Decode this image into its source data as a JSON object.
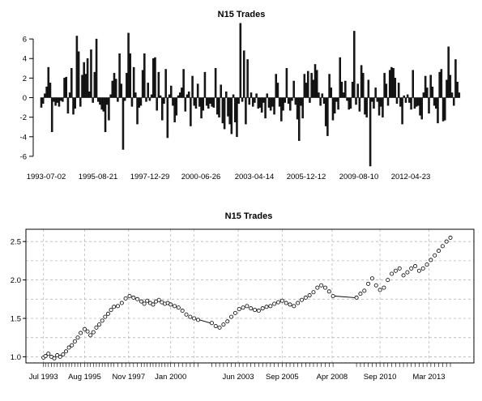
{
  "chart_data": [
    {
      "type": "bar",
      "title": "N15 Trades",
      "xlabel": "",
      "ylabel": "",
      "ylim": [
        -7,
        7.5
      ],
      "yticks": [
        -6,
        -4,
        -2,
        0,
        2,
        4,
        6
      ],
      "xtick_labels": [
        "1993-07-02",
        "1995-08-21",
        "1997-12-29",
        "2000-06-26",
        "2003-04-14",
        "2005-12-12",
        "2009-08-10",
        "2012-04-23"
      ],
      "values": [
        -1.0,
        -0.6,
        0.4,
        1.1,
        3.1,
        1.5,
        -3.5,
        -0.4,
        -0.8,
        -0.5,
        -0.9,
        -0.3,
        -0.4,
        2.0,
        2.1,
        -1.6,
        0.5,
        3.0,
        -1.7,
        -1.1,
        6.3,
        4.7,
        -0.9,
        2.3,
        3.6,
        2.4,
        4.0,
        0.6,
        4.9,
        -0.5,
        2.6,
        6.0,
        -0.4,
        -0.7,
        -1.2,
        -1.4,
        -3.5,
        -0.7,
        -2.3,
        0.3,
        1.7,
        2.5,
        1.9,
        -0.4,
        4.5,
        1.4,
        -5.3,
        -0.3,
        2.5,
        6.6,
        4.5,
        -0.9,
        3.1,
        0.5,
        -2.7,
        -1.0,
        -0.8,
        2.8,
        4.5,
        -0.4,
        1.5,
        -0.3,
        0.3,
        4.0,
        4.1,
        -1.3,
        2.6,
        0.2,
        -2.3,
        -0.6,
        2.9,
        -4.1,
        0.3,
        1.2,
        -0.8,
        -2.5,
        -1.8,
        0.2,
        0.5,
        1.0,
        2.9,
        -1.4,
        0.3,
        0.6,
        -2.9,
        2.2,
        -0.8,
        -1.1,
        1.4,
        -0.9,
        -2.1,
        -1.3,
        2.6,
        -0.8,
        -1.1,
        -0.6,
        -0.9,
        -1.0,
        3.0,
        -1.7,
        -2.0,
        1.3,
        -2.6,
        -3.2,
        0.6,
        -1.9,
        -2.7,
        -3.7,
        0.3,
        -2.5,
        -4.0,
        -0.6,
        7.6,
        -0.4,
        4.8,
        -2.7,
        3.9,
        -0.7,
        0.5,
        -0.9,
        -0.5,
        0.4,
        -1.1,
        -1.0,
        -1.5,
        -0.5,
        -2.1,
        0.4,
        -1.0,
        -1.3,
        -0.9,
        -1.7,
        2.4,
        1.5,
        -0.9,
        -2.4,
        -1.3,
        -0.5,
        3.0,
        -0.6,
        -1.3,
        -0.3,
        1.7,
        -0.7,
        -2.2,
        -4.4,
        -0.8,
        -2.1,
        2.4,
        1.5,
        2.7,
        -0.5,
        2.5,
        1.8,
        3.4,
        2.8,
        0.5,
        -0.8,
        0.4,
        -0.6,
        -2.9,
        -3.9,
        2.4,
        1.0,
        -2.3,
        -1.6,
        -0.4,
        -1.2,
        4.1,
        1.6,
        0.5,
        1.7,
        -0.3,
        -1.2,
        -1.1,
        1.6,
        6.8,
        -0.7,
        1.4,
        -1.4,
        3.3,
        2.5,
        -1.7,
        -2.0,
        1.8,
        -7.0,
        -0.4,
        -1.1,
        1.0,
        -0.4,
        -1.8,
        -0.9,
        -2.0,
        2.5,
        1.4,
        -0.8,
        2.8,
        3.1,
        3.0,
        2.0,
        -0.6,
        1.5,
        -0.9,
        -2.7,
        0.2,
        -0.5,
        0.3,
        -0.5,
        -1.2,
        2.8,
        -1.1,
        -0.9,
        -0.8,
        -1.8,
        -2.2,
        0.5,
        2.2,
        1.0,
        -1.6,
        2.3,
        1.1,
        -0.8,
        -1.1,
        -2.6,
        2.6,
        2.9,
        -2.4,
        -2.3,
        1.8,
        5.2,
        2.3,
        0.5,
        -0.8,
        3.9,
        1.6,
        0.5
      ],
      "axis_range_x": [
        1993.5,
        2014.6
      ]
    },
    {
      "type": "scatter",
      "title": "N15 Trades",
      "xlabel": "",
      "ylabel": "",
      "xlim": [
        1992.6,
        2015.5
      ],
      "ylim": [
        0.92,
        2.66
      ],
      "yticks": [
        1.0,
        1.5,
        2.0,
        2.5
      ],
      "grid": true,
      "xtick_labels": [
        {
          "label": "Jul 1993",
          "x": 1993.5
        },
        {
          "label": "Aug 1995",
          "x": 1995.6
        },
        {
          "label": "Nov 1997",
          "x": 1997.85
        },
        {
          "label": "Jan 2000",
          "x": 2000.0
        },
        {
          "label": "Jun 2003",
          "x": 2003.45
        },
        {
          "label": "Sep 2005",
          "x": 2005.7
        },
        {
          "label": "Apr 2008",
          "x": 2008.25
        },
        {
          "label": "Sep 2010",
          "x": 2010.7
        },
        {
          "label": "Mar 2013",
          "x": 2013.2
        }
      ],
      "grid_x": [
        1993.5,
        1995.6,
        1997.85,
        2000.0,
        2001.2,
        2003.45,
        2005.7,
        2008.25,
        2010.7,
        2013.2
      ],
      "grid_y": [
        1.0,
        1.25,
        1.5,
        1.75,
        2.0,
        2.25,
        2.5
      ],
      "x": [
        1993.5,
        1993.6,
        1993.75,
        1993.9,
        1994.05,
        1994.2,
        1994.35,
        1994.5,
        1994.65,
        1994.8,
        1994.95,
        1995.1,
        1995.25,
        1995.4,
        1995.6,
        1995.75,
        1995.9,
        1996.05,
        1996.2,
        1996.35,
        1996.5,
        1996.65,
        1996.8,
        1996.95,
        1997.1,
        1997.3,
        1997.5,
        1997.7,
        1997.9,
        1998.1,
        1998.3,
        1998.5,
        1998.65,
        1998.8,
        1998.95,
        1999.1,
        1999.25,
        1999.4,
        1999.55,
        1999.7,
        1999.85,
        2000.0,
        2000.2,
        2000.4,
        2000.6,
        2000.8,
        2001.0,
        2001.2,
        2001.4,
        2002.1,
        2002.3,
        2002.5,
        2002.7,
        2002.9,
        2003.1,
        2003.3,
        2003.5,
        2003.7,
        2003.9,
        2004.1,
        2004.3,
        2004.5,
        2004.7,
        2004.9,
        2005.1,
        2005.3,
        2005.5,
        2005.7,
        2005.9,
        2006.1,
        2006.3,
        2006.5,
        2006.7,
        2006.9,
        2007.1,
        2007.3,
        2007.5,
        2007.7,
        2007.9,
        2008.1,
        2008.3,
        2009.5,
        2009.7,
        2009.9,
        2010.1,
        2010.3,
        2010.5,
        2010.7,
        2010.9,
        2011.1,
        2011.3,
        2011.5,
        2011.7,
        2011.9,
        2012.1,
        2012.3,
        2012.5,
        2012.7,
        2012.9,
        2013.1,
        2013.3,
        2013.5,
        2013.7,
        2013.9,
        2014.1,
        2014.3
      ],
      "y": [
        0.99,
        1.01,
        1.04,
        1.0,
        0.98,
        1.02,
        1.0,
        1.03,
        1.07,
        1.12,
        1.15,
        1.2,
        1.25,
        1.31,
        1.36,
        1.33,
        1.28,
        1.32,
        1.38,
        1.42,
        1.47,
        1.52,
        1.56,
        1.61,
        1.65,
        1.66,
        1.7,
        1.76,
        1.79,
        1.77,
        1.75,
        1.72,
        1.69,
        1.73,
        1.7,
        1.68,
        1.72,
        1.74,
        1.71,
        1.69,
        1.7,
        1.68,
        1.66,
        1.64,
        1.6,
        1.55,
        1.52,
        1.5,
        1.48,
        1.44,
        1.4,
        1.38,
        1.42,
        1.46,
        1.52,
        1.57,
        1.62,
        1.64,
        1.66,
        1.63,
        1.61,
        1.6,
        1.63,
        1.65,
        1.66,
        1.69,
        1.71,
        1.73,
        1.7,
        1.68,
        1.66,
        1.7,
        1.74,
        1.77,
        1.8,
        1.84,
        1.9,
        1.93,
        1.9,
        1.85,
        1.79,
        1.77,
        1.82,
        1.86,
        1.95,
        2.02,
        1.93,
        1.87,
        1.9,
        2.0,
        2.08,
        2.12,
        2.15,
        2.06,
        2.1,
        2.15,
        2.18,
        2.12,
        2.15,
        2.2,
        2.26,
        2.32,
        2.38,
        2.44,
        2.5,
        2.55
      ]
    }
  ]
}
